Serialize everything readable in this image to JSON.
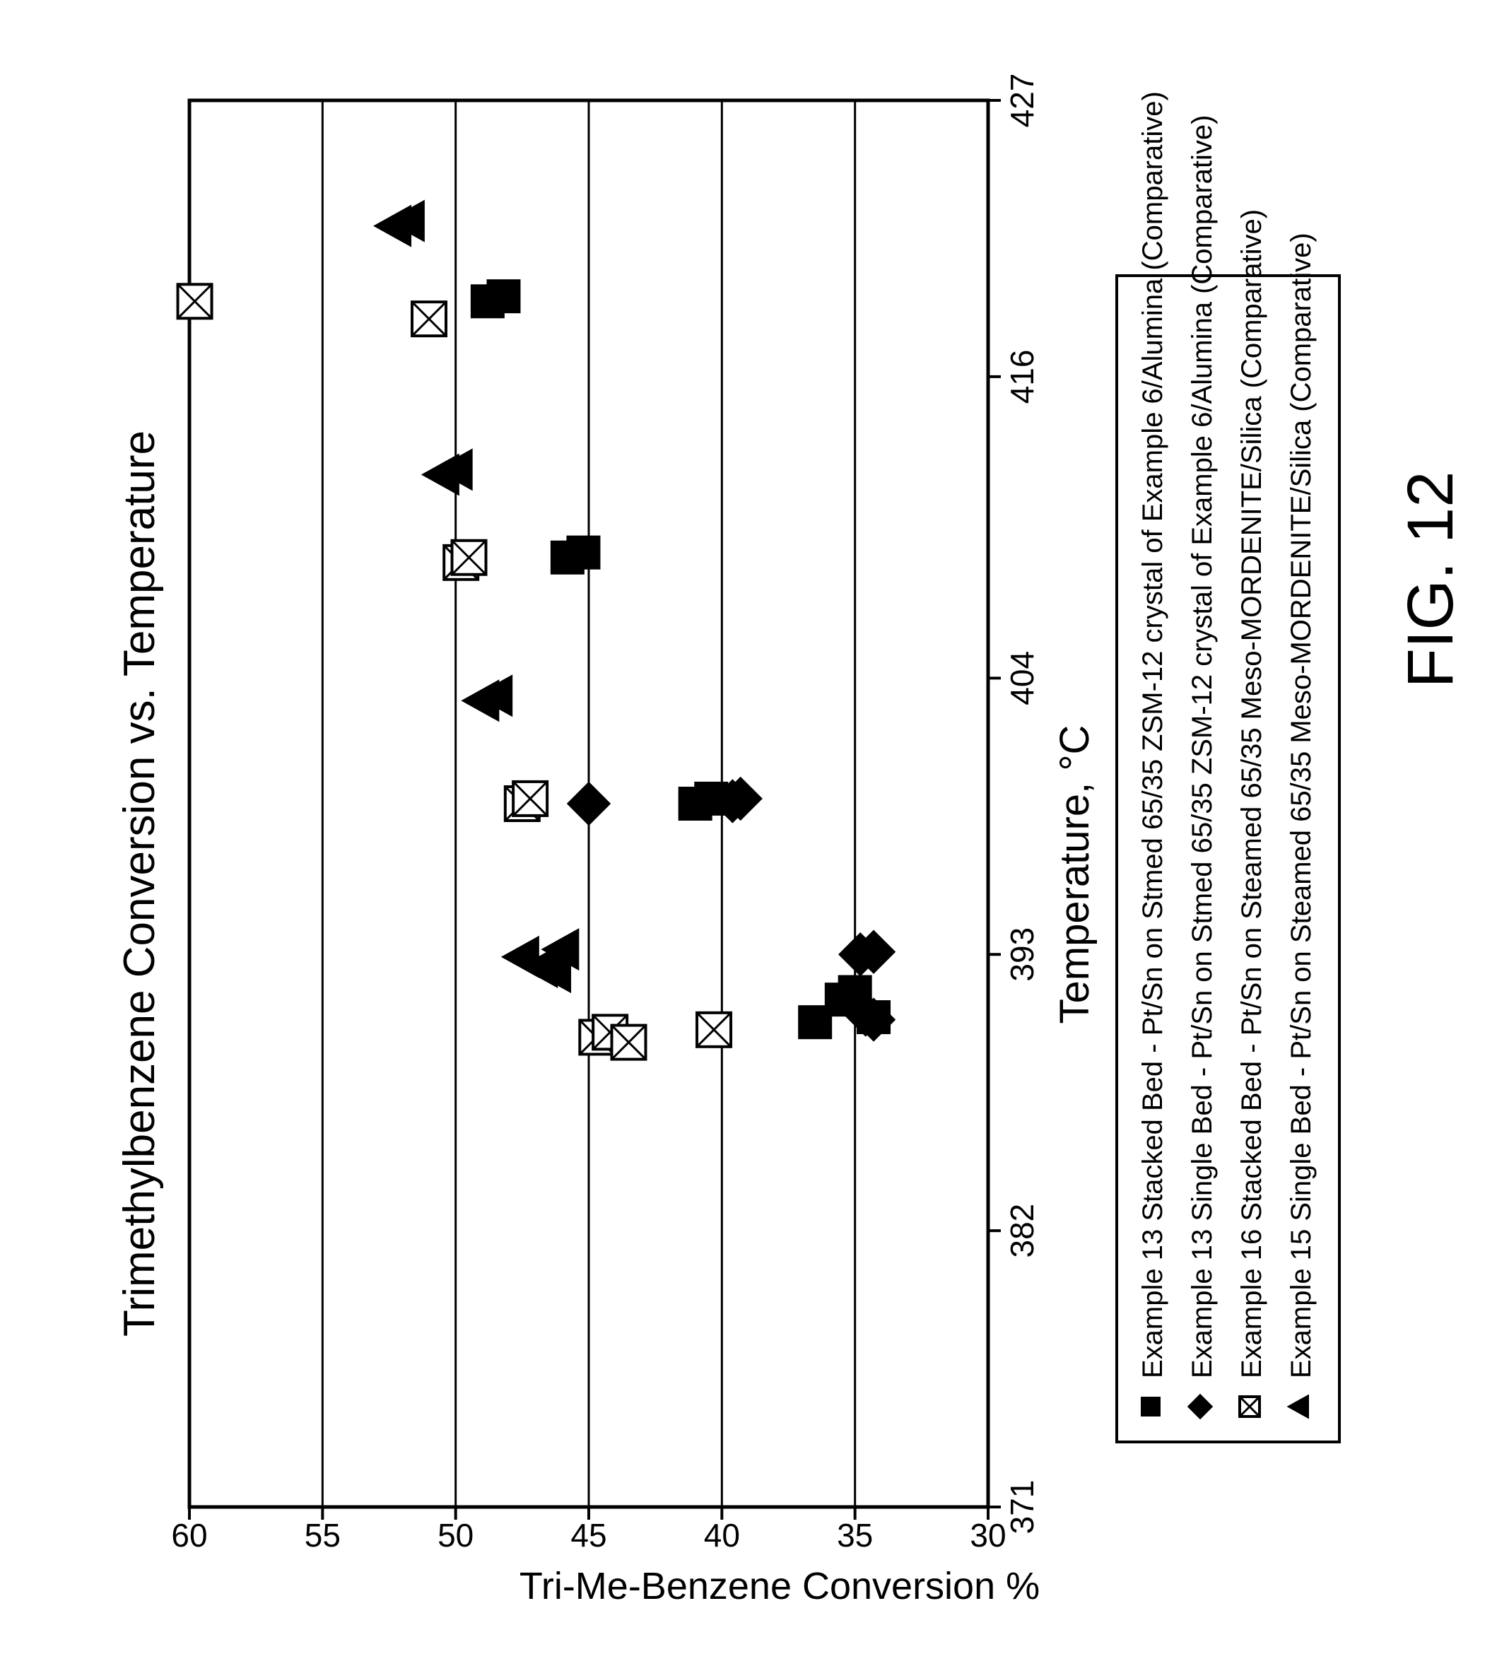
{
  "figure_label": "FIG. 12",
  "chart_data": {
    "type": "scatter",
    "title": "Trimethylbenzene Conversion vs. Temperature",
    "xlabel": "Temperature, °C",
    "ylabel": "Tri-Me-Benzene Conversion %",
    "xlim": [
      371,
      427
    ],
    "ylim": [
      30,
      60
    ],
    "x_ticks": [
      "371",
      "382",
      "393",
      "404",
      "416",
      "427"
    ],
    "y_ticks": [
      "30",
      "35",
      "40",
      "45",
      "50",
      "55",
      "60"
    ],
    "grid": "horizontal",
    "legend_position": "bottom",
    "series": [
      {
        "name": "Example 13 Stacked Bed - Pt/Sn on Stmed 65/35 ZSM-12 crystal of Example 6/Alumina (Comparative)",
        "marker": "square",
        "points": [
          [
            390.3,
            36.5
          ],
          [
            390.5,
            34.3
          ],
          [
            391.2,
            35.5
          ],
          [
            391.5,
            35.0
          ],
          [
            399.0,
            41.0
          ],
          [
            399.2,
            40.4
          ],
          [
            408.8,
            45.8
          ],
          [
            409.0,
            45.2
          ],
          [
            419.0,
            48.8
          ],
          [
            419.2,
            48.2
          ]
        ]
      },
      {
        "name": "Example 13 Single Bed - Pt/Sn on Stmed 65/35 ZSM-12 crystal of Example 6/Alumina (Comparative)",
        "marker": "diamond",
        "points": [
          [
            393.0,
            34.8
          ],
          [
            393.1,
            34.3
          ],
          [
            390.4,
            34.3
          ],
          [
            390.6,
            34.6
          ],
          [
            399.0,
            45.0
          ],
          [
            399.1,
            39.6
          ],
          [
            399.2,
            39.3
          ]
        ]
      },
      {
        "name": "Example 16 Stacked Bed - Pt/Sn on Steamed 65/35 Meso-MORDENITE/Silica (Comparative)",
        "marker": "boxed-x",
        "points": [
          [
            390.0,
            40.3
          ],
          [
            389.7,
            44.7
          ],
          [
            389.9,
            44.2
          ],
          [
            389.5,
            43.5
          ],
          [
            399.0,
            47.5
          ],
          [
            399.2,
            47.2
          ],
          [
            408.6,
            49.8
          ],
          [
            408.8,
            49.5
          ],
          [
            418.3,
            51.0
          ],
          [
            419.0,
            59.8
          ]
        ]
      },
      {
        "name": "Example 15 Single Bed - Pt/Sn on Steamed 65/35 Meso-MORDENITE/Silica (Comparative)",
        "marker": "triangle",
        "points": [
          [
            392.9,
            47.5
          ],
          [
            392.5,
            46.8
          ],
          [
            392.3,
            46.3
          ],
          [
            393.2,
            46.0
          ],
          [
            403.1,
            49.0
          ],
          [
            403.3,
            48.5
          ],
          [
            412.1,
            50.5
          ],
          [
            412.3,
            50.0
          ],
          [
            422.0,
            52.3
          ],
          [
            422.2,
            51.8
          ]
        ]
      }
    ]
  }
}
